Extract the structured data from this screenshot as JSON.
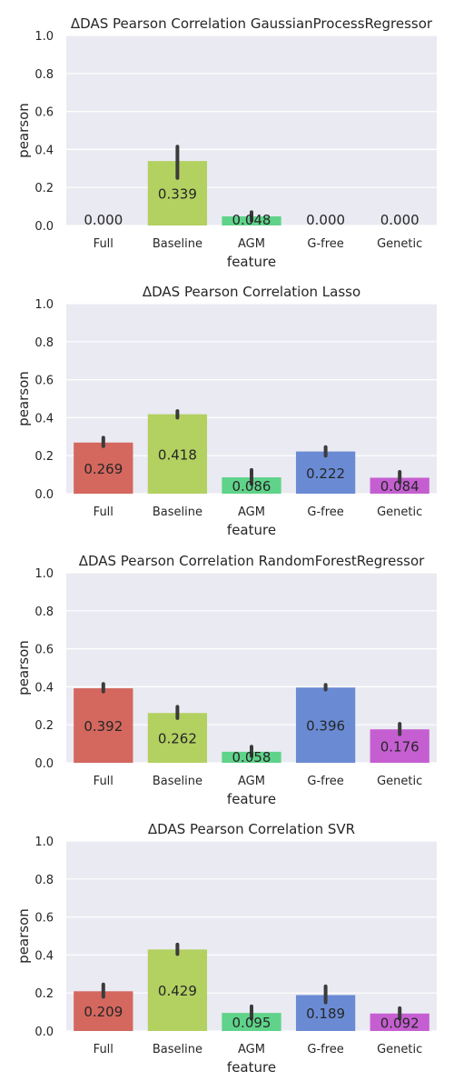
{
  "chart_data": [
    {
      "type": "bar",
      "title": "ΔDAS Pearson Correlation GaussianProcessRegressor",
      "xlabel": "feature",
      "ylabel": "pearson",
      "ylim": [
        0,
        1.0
      ],
      "yticks": [
        "0.0",
        "0.2",
        "0.4",
        "0.6",
        "0.8",
        "1.0"
      ],
      "grid": true,
      "categories": [
        "Full",
        "Baseline",
        "AGM",
        "G-free",
        "Genetic"
      ],
      "values": [
        0.0,
        0.339,
        0.048,
        0.0,
        0.0
      ],
      "labels": [
        "0.000",
        "0.339",
        "0.048",
        "0.000",
        "0.000"
      ],
      "err_low": [
        0,
        0.25,
        0.025,
        0,
        0
      ],
      "err_high": [
        0,
        0.415,
        0.07,
        0,
        0
      ]
    },
    {
      "type": "bar",
      "title": "ΔDAS Pearson Correlation Lasso",
      "xlabel": "feature",
      "ylabel": "pearson",
      "ylim": [
        0,
        1.0
      ],
      "yticks": [
        "0.0",
        "0.2",
        "0.4",
        "0.6",
        "0.8",
        "1.0"
      ],
      "grid": true,
      "categories": [
        "Full",
        "Baseline",
        "AGM",
        "G-free",
        "Genetic"
      ],
      "values": [
        0.269,
        0.418,
        0.086,
        0.222,
        0.084
      ],
      "labels": [
        "0.269",
        "0.418",
        "0.086",
        "0.222",
        "0.084"
      ],
      "err_low": [
        0.25,
        0.4,
        0.05,
        0.2,
        0.06
      ],
      "err_high": [
        0.295,
        0.435,
        0.125,
        0.245,
        0.115
      ]
    },
    {
      "type": "bar",
      "title": "ΔDAS Pearson Correlation RandomForestRegressor",
      "xlabel": "feature",
      "ylabel": "pearson",
      "ylim": [
        0,
        1.0
      ],
      "yticks": [
        "0.0",
        "0.2",
        "0.4",
        "0.6",
        "0.8",
        "1.0"
      ],
      "grid": true,
      "categories": [
        "Full",
        "Baseline",
        "AGM",
        "G-free",
        "Genetic"
      ],
      "values": [
        0.392,
        0.262,
        0.058,
        0.396,
        0.176
      ],
      "labels": [
        "0.392",
        "0.262",
        "0.058",
        "0.396",
        "0.176"
      ],
      "err_low": [
        0.375,
        0.235,
        0.035,
        0.385,
        0.15
      ],
      "err_high": [
        0.415,
        0.295,
        0.085,
        0.41,
        0.205
      ]
    },
    {
      "type": "bar",
      "title": "ΔDAS Pearson Correlation SVR",
      "xlabel": "feature",
      "ylabel": "pearson",
      "ylim": [
        0,
        1.0
      ],
      "yticks": [
        "0.0",
        "0.2",
        "0.4",
        "0.6",
        "0.8",
        "1.0"
      ],
      "grid": true,
      "categories": [
        "Full",
        "Baseline",
        "AGM",
        "G-free",
        "Genetic"
      ],
      "values": [
        0.209,
        0.429,
        0.095,
        0.189,
        0.092
      ],
      "labels": [
        "0.209",
        "0.429",
        "0.095",
        "0.189",
        "0.092"
      ],
      "err_low": [
        0.18,
        0.405,
        0.065,
        0.15,
        0.065
      ],
      "err_high": [
        0.245,
        0.455,
        0.13,
        0.235,
        0.12
      ]
    }
  ],
  "colors": {
    "background": "#eaeaf2",
    "grid": "#ffffff",
    "errorbar": "#3b3b3b",
    "bars": [
      "#d4675e",
      "#b3d161",
      "#5fd38a",
      "#6a8bd4",
      "#c55fd1"
    ]
  }
}
